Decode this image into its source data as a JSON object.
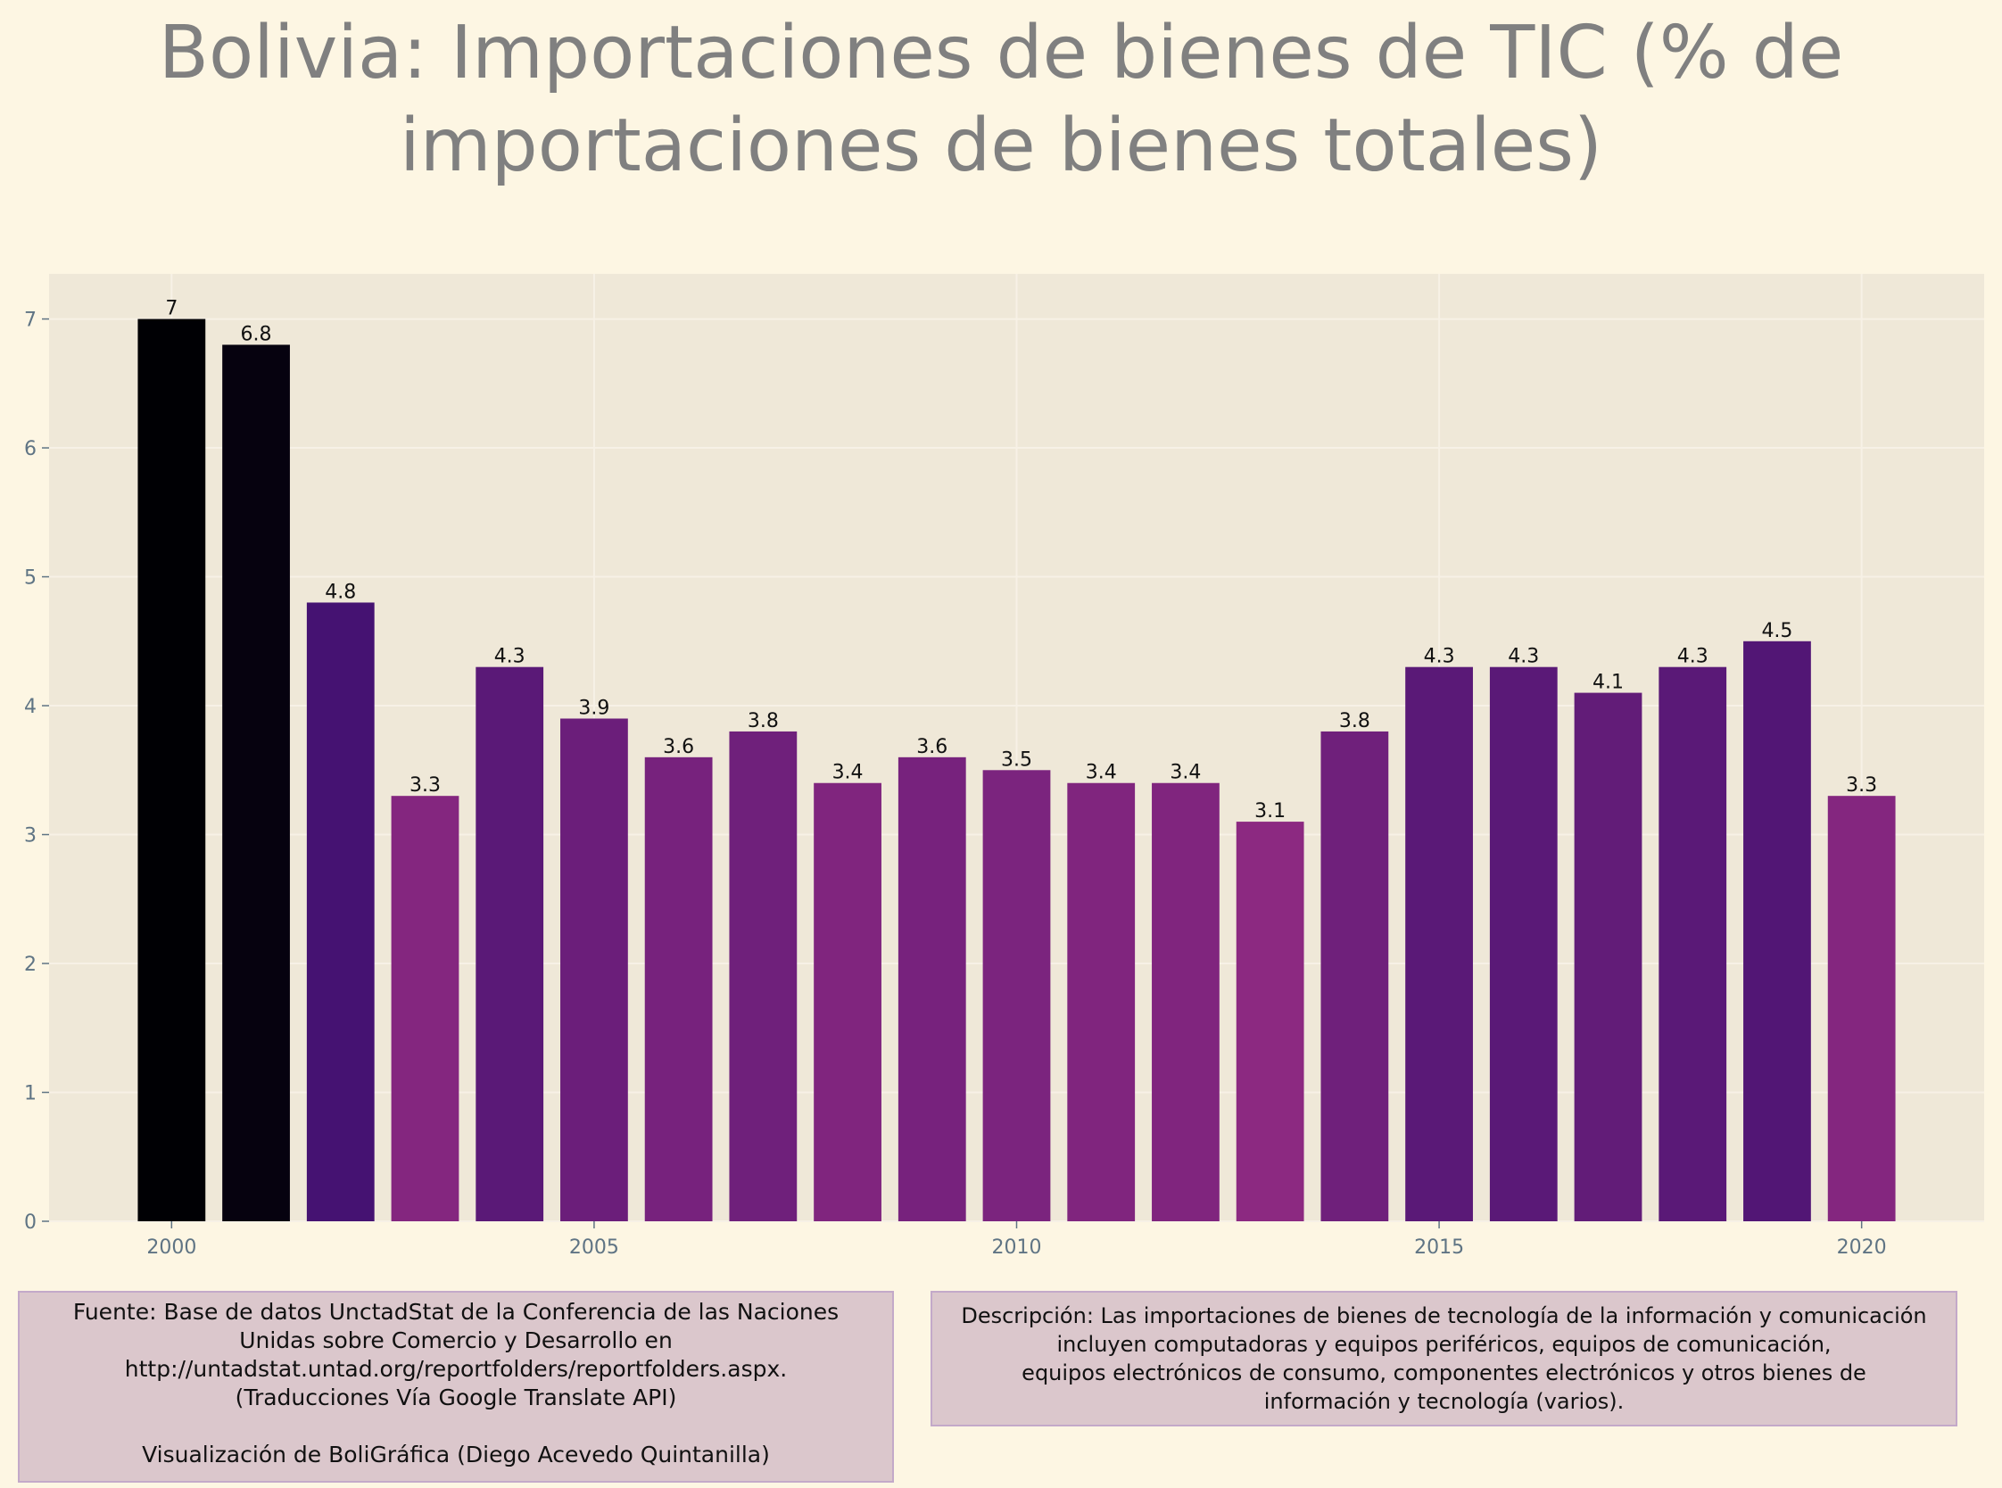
{
  "title": {
    "line1": "Bolivia:  Importaciones de bienes de TIC (% de",
    "line2": "importaciones de bienes totales)"
  },
  "chart_data": {
    "type": "bar",
    "x": [
      2000,
      2001,
      2002,
      2003,
      2004,
      2005,
      2006,
      2007,
      2008,
      2009,
      2010,
      2011,
      2012,
      2013,
      2014,
      2015,
      2016,
      2017,
      2018,
      2019,
      2020
    ],
    "values": [
      7,
      6.8,
      4.8,
      3.3,
      4.3,
      3.9,
      3.6,
      3.8,
      3.4,
      3.6,
      3.5,
      3.4,
      3.4,
      3.1,
      3.8,
      4.3,
      4.3,
      4.1,
      4.3,
      4.5,
      3.3
    ],
    "data_labels": [
      "7",
      "6.8",
      "4.8",
      "3.3",
      "4.3",
      "3.9",
      "3.6",
      "3.8",
      "3.4",
      "3.6",
      "3.5",
      "3.4",
      "3.4",
      "3.1",
      "3.8",
      "4.3",
      "4.3",
      "4.1",
      "4.3",
      "4.5",
      "3.3"
    ],
    "xticks": [
      "2000",
      "2005",
      "2010",
      "2015",
      "2020"
    ],
    "xtick_values": [
      2000,
      2005,
      2010,
      2015,
      2020
    ],
    "yticks": [
      "0",
      "1",
      "2",
      "3",
      "4",
      "5",
      "6",
      "7"
    ],
    "ylim": [
      0,
      7.35
    ],
    "xlim": [
      1998.55,
      2021.45
    ],
    "xlabel": "",
    "ylabel": "",
    "grid": true,
    "legend": "none",
    "colors": {
      "panel": "#efe8d8",
      "grid": "#f7f1e6",
      "tick_text": "#5f7484",
      "bar_scale": [
        "#000004",
        "#3b0f70",
        "#8c2981"
      ]
    }
  },
  "source_note": {
    "line1": "Fuente: Base de datos UnctadStat de la Conferencia de las Naciones",
    "line2": "Unidas sobre Comercio y Desarrollo en",
    "line3": "http://untadstat.untad.org/reportfolders/reportfolders.aspx.",
    "line4": "(Traducciones Vía Google Translate API)",
    "line5": "Visualización de BoliGráfica (Diego Acevedo Quintanilla)"
  },
  "description_note": {
    "line1": "Descripción: Las importaciones de bienes de tecnología de la información y comunicación",
    "line2": "incluyen computadoras y equipos periféricos, equipos de comunicación,",
    "line3": "equipos electrónicos de consumo, componentes electrónicos y otros bienes de",
    "line4": "información y tecnología (varios)."
  }
}
